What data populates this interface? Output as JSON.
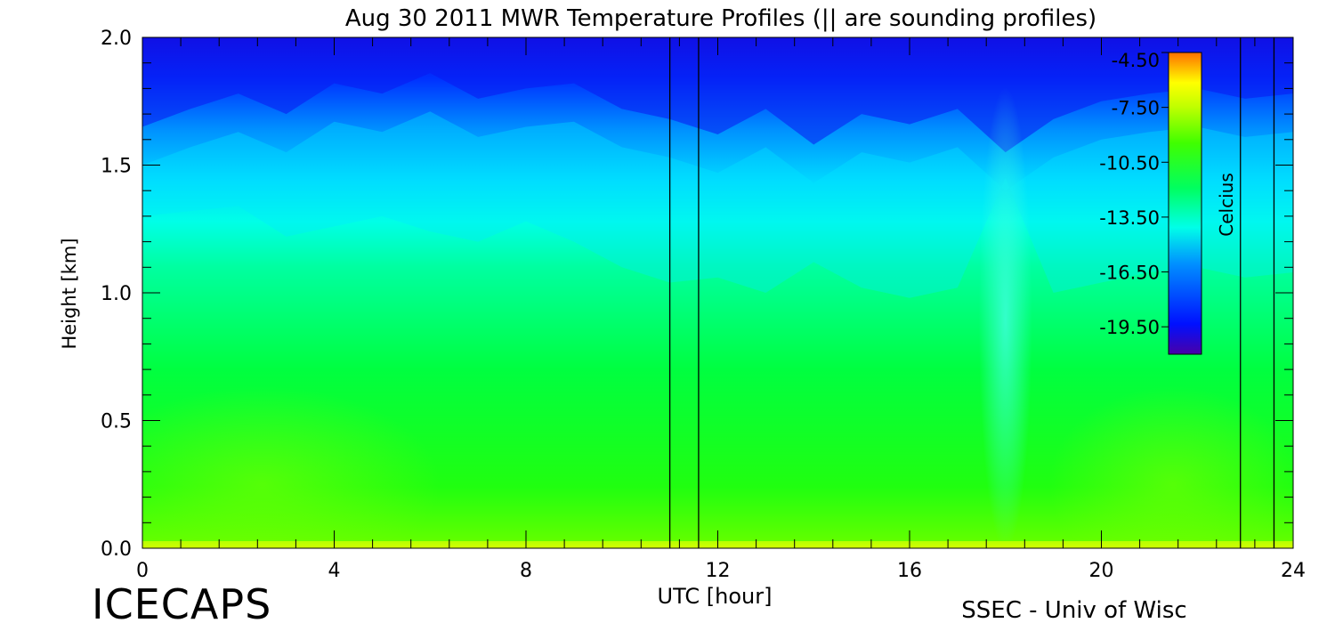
{
  "chart_data": {
    "type": "heatmap",
    "title": "Aug 30 2011 MWR Temperature Profiles (|| are sounding profiles)",
    "xlabel": "UTC [hour]",
    "ylabel": "Height [km]",
    "xlim": [
      0,
      24
    ],
    "ylim": [
      0,
      2.0
    ],
    "x_ticks": [
      "0",
      "4",
      "8",
      "12",
      "16",
      "20",
      "24"
    ],
    "y_ticks": [
      "0.0",
      "0.5",
      "1.0",
      "1.5",
      "2.0"
    ],
    "colorbar": {
      "label": "Celcius",
      "ticks": [
        "-4.50",
        "-7.50",
        "-10.50",
        "-13.50",
        "-16.50",
        "-19.50"
      ],
      "range": [
        -21.0,
        -4.5
      ],
      "colors": [
        "#4a00a8",
        "#0010ff",
        "#00c8ff",
        "#00ffe0",
        "#00ff40",
        "#a0ff00",
        "#ffff00",
        "#ff8000"
      ]
    },
    "sounding_times_hours": [
      11.0,
      11.6,
      22.9,
      23.6
    ],
    "grid": false,
    "temperature_profile_reference": {
      "heights_km": [
        0.0,
        0.3,
        0.6,
        1.0,
        1.3,
        1.6,
        2.0
      ],
      "temperature_c": [
        -9.0,
        -11.0,
        -12.0,
        -13.5,
        -14.5,
        -16.5,
        -19.5
      ]
    }
  },
  "footer": {
    "left_logo_text": "ICECAPS",
    "right_credit": "SSEC - Univ of Wisc"
  }
}
